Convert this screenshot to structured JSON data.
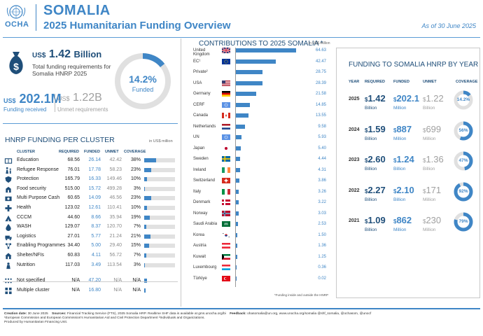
{
  "header": {
    "logo_text": "OCHA",
    "country": "SOMALIA",
    "subtitle": "2025 Humanitarian Funding Overview",
    "as_of": "As of 30 June 2025"
  },
  "summary": {
    "total_currency": "US$",
    "total_amount": "1.42",
    "total_unit": "Billion",
    "total_desc": "Total funding requirements for Somalia HNRP 2025",
    "received_currency": "US$",
    "received_amount": "202.1M",
    "received_label": "Funding received",
    "unmet_currency": "US$",
    "unmet_amount": "1.22B",
    "unmet_label": "Unmet requirements",
    "coverage_pct": "14.2%",
    "coverage_value": 14.2,
    "coverage_label": "Funded"
  },
  "clusters": {
    "title": "HNRP FUNDING PER CLUSTER",
    "unit": "in US$ million",
    "headers": {
      "cluster": "CLUSTER",
      "required": "REQUIRED",
      "funded": "FUNDED",
      "unmet": "UNMET",
      "coverage": "COVERAGE"
    },
    "rows": [
      {
        "icon": "education-icon",
        "name": "Education",
        "required": "68.56",
        "funded": "26.14",
        "unmet": "42.42",
        "coverage": "38%",
        "cov": 38
      },
      {
        "icon": "refugee-response-icon",
        "name": "Refugee  Response",
        "required": "76.01",
        "funded": "17.78",
        "unmet": "58.23",
        "coverage": "23%",
        "cov": 23
      },
      {
        "icon": "protection-icon",
        "name": "Protection",
        "required": "165.79",
        "funded": "16.33",
        "unmet": "149.46",
        "coverage": "10%",
        "cov": 10
      },
      {
        "icon": "food-security-icon",
        "name": "Food security",
        "required": "515.00",
        "funded": "15.72",
        "unmet": "499.28",
        "coverage": "3%",
        "cov": 3
      },
      {
        "icon": "multi-purpose-cash-icon",
        "name": "Multi Purpose Cash",
        "required": "60.65",
        "funded": "14.09",
        "unmet": "46.56",
        "coverage": "23%",
        "cov": 23
      },
      {
        "icon": "health-icon",
        "name": "Health",
        "required": "123.02",
        "funded": "12.61",
        "unmet": "110.41",
        "coverage": "10%",
        "cov": 10
      },
      {
        "icon": "cccm-icon",
        "name": "CCCM",
        "required": "44.60",
        "funded": "8.66",
        "unmet": "35.94",
        "coverage": "19%",
        "cov": 19
      },
      {
        "icon": "wash-icon",
        "name": "WASH",
        "required": "129.07",
        "funded": "8.37",
        "unmet": "120.70",
        "coverage": "7%",
        "cov": 7
      },
      {
        "icon": "logistics-icon",
        "name": "Logistics",
        "required": "27.01",
        "funded": "5.77",
        "unmet": "21.24",
        "coverage": "21%",
        "cov": 21
      },
      {
        "icon": "enabling-programmes-icon",
        "name": "Enabling Programmes",
        "required": "34.40",
        "funded": "5.00",
        "unmet": "29.40",
        "coverage": "15%",
        "cov": 15
      },
      {
        "icon": "shelter-nfis-icon",
        "name": "Shelter/NFIs",
        "required": "60.83",
        "funded": "4.11",
        "unmet": "56.72",
        "coverage": "7%",
        "cov": 7
      },
      {
        "icon": "nutrition-icon",
        "name": "Nutrition",
        "required": "117.03",
        "funded": "3.49",
        "unmet": "113.54",
        "coverage": "3%",
        "cov": 3
      },
      {
        "icon": "not-specified-icon",
        "name": "Not specified",
        "required": "N/A",
        "funded": "47.20",
        "unmet": "N/A",
        "coverage": "N/A",
        "cov": 8
      },
      {
        "icon": "multiple-cluster-icon",
        "name": "Multiple cluster",
        "required": "N/A",
        "funded": "16.80",
        "unmet": "N/A",
        "coverage": "N/A",
        "cov": 4
      }
    ]
  },
  "contributions": {
    "title": "CONTRIBUTIONS TO 2025 SOMALIA *",
    "unit": "in US$ million",
    "footnote": "*Funding inside and outside the HNRP",
    "max": 64.63,
    "donors": [
      {
        "name": "United Kingdom",
        "value": 64.63,
        "label": "64.63",
        "flag": "uk"
      },
      {
        "name": "EC¹",
        "value": 42.47,
        "label": "42.47",
        "flag": "eu"
      },
      {
        "name": "Private²",
        "value": 28.75,
        "label": "28.75",
        "flag": "none"
      },
      {
        "name": "USA",
        "value": 28.39,
        "label": "28.39",
        "flag": "usa"
      },
      {
        "name": "Germany",
        "value": 21.58,
        "label": "21.58",
        "flag": "germany"
      },
      {
        "name": "CERF",
        "value": 14.85,
        "label": "14.85",
        "flag": "un"
      },
      {
        "name": "Canada",
        "value": 13.55,
        "label": "13.55",
        "flag": "canada"
      },
      {
        "name": "Netherlands",
        "value": 9.58,
        "label": "9.58",
        "flag": "netherlands"
      },
      {
        "name": "UN",
        "value": 5.93,
        "label": "5.93",
        "flag": "un"
      },
      {
        "name": "Japan",
        "value": 5.4,
        "label": "5.40",
        "flag": "japan"
      },
      {
        "name": "Sweden",
        "value": 4.44,
        "label": "4.44",
        "flag": "sweden"
      },
      {
        "name": "Ireland",
        "value": 4.31,
        "label": "4.31",
        "flag": "ireland"
      },
      {
        "name": "Switzerland",
        "value": 3.86,
        "label": "3.86",
        "flag": "switzerland"
      },
      {
        "name": "Italy",
        "value": 3.26,
        "label": "3.26",
        "flag": "italy"
      },
      {
        "name": "Denmark",
        "value": 3.22,
        "label": "3.22",
        "flag": "denmark"
      },
      {
        "name": "Norway",
        "value": 3.03,
        "label": "3.03",
        "flag": "norway"
      },
      {
        "name": "Saudi Arabia",
        "value": 2.53,
        "label": "2.53",
        "flag": "saudi"
      },
      {
        "name": "Korea",
        "value": 1.5,
        "label": "1.50",
        "flag": "korea"
      },
      {
        "name": "Austria",
        "value": 1.36,
        "label": "1.36",
        "flag": "austria"
      },
      {
        "name": "Kuwait",
        "value": 1.25,
        "label": "1.25",
        "flag": "kuwait"
      },
      {
        "name": "Luxembourg",
        "value": 0.36,
        "label": "0.36",
        "flag": "luxembourg"
      },
      {
        "name": "Türkiye",
        "value": 0.02,
        "label": "0.02",
        "flag": "turkiye"
      }
    ]
  },
  "yearly": {
    "title": "FUNDING TO SOMALIA HNRP BY YEAR",
    "headers": {
      "year": "YEAR",
      "required": "REQUIRED",
      "funded": "FUNDED",
      "unmet": "UNMET",
      "coverage": "COVERAGE"
    },
    "rows": [
      {
        "year": "2025",
        "req": "1.42",
        "req_unit": "Billion",
        "funded": "202.1",
        "funded_unit": "Million",
        "unmet": "1.22",
        "unmet_unit": "Billion",
        "coverage": "14.2%",
        "cov": 14.2
      },
      {
        "year": "2024",
        "req": "1.59",
        "req_unit": "Billion",
        "funded": "887",
        "funded_unit": "Million",
        "unmet": "699",
        "unmet_unit": "Million",
        "coverage": "56%",
        "cov": 56
      },
      {
        "year": "2023",
        "req": "2.60",
        "req_unit": "Billion",
        "funded": "1.24",
        "funded_unit": "Billion",
        "unmet": "1.36",
        "unmet_unit": "Billion",
        "coverage": "47%",
        "cov": 47
      },
      {
        "year": "2022",
        "req": "2.27",
        "req_unit": "Billion",
        "funded": "2.10",
        "funded_unit": "Billion",
        "unmet": "171",
        "unmet_unit": "Million",
        "coverage": "92%",
        "cov": 92
      },
      {
        "year": "2021",
        "req": "1.09",
        "req_unit": "Billion",
        "funded": "862",
        "funded_unit": "Million",
        "unmet": "230",
        "unmet_unit": "Million",
        "coverage": "79%",
        "cov": 79
      }
    ]
  },
  "footer": {
    "creation_label": "Creation date:",
    "creation_date": "30 June 2025",
    "sources_label": "Sources:",
    "sources_text": "Financial Tracking Service (FTS), 2025 Somalia HRP. Realtime SHF data is available at gms.unocha.org/bi",
    "feedback_label": "Feedback:",
    "feedback_text": "ohasomalia@un.org,   www.unocha.org/somalia @shf_somalia,  @ochasom,  @unocf",
    "note_line": "¹European Commission and European Commission's Humanitarian Aid and Civil Protection Department   ²Individuals and Organizations.",
    "produced_by": "Produced by Humanitarian Financing Unit."
  }
}
